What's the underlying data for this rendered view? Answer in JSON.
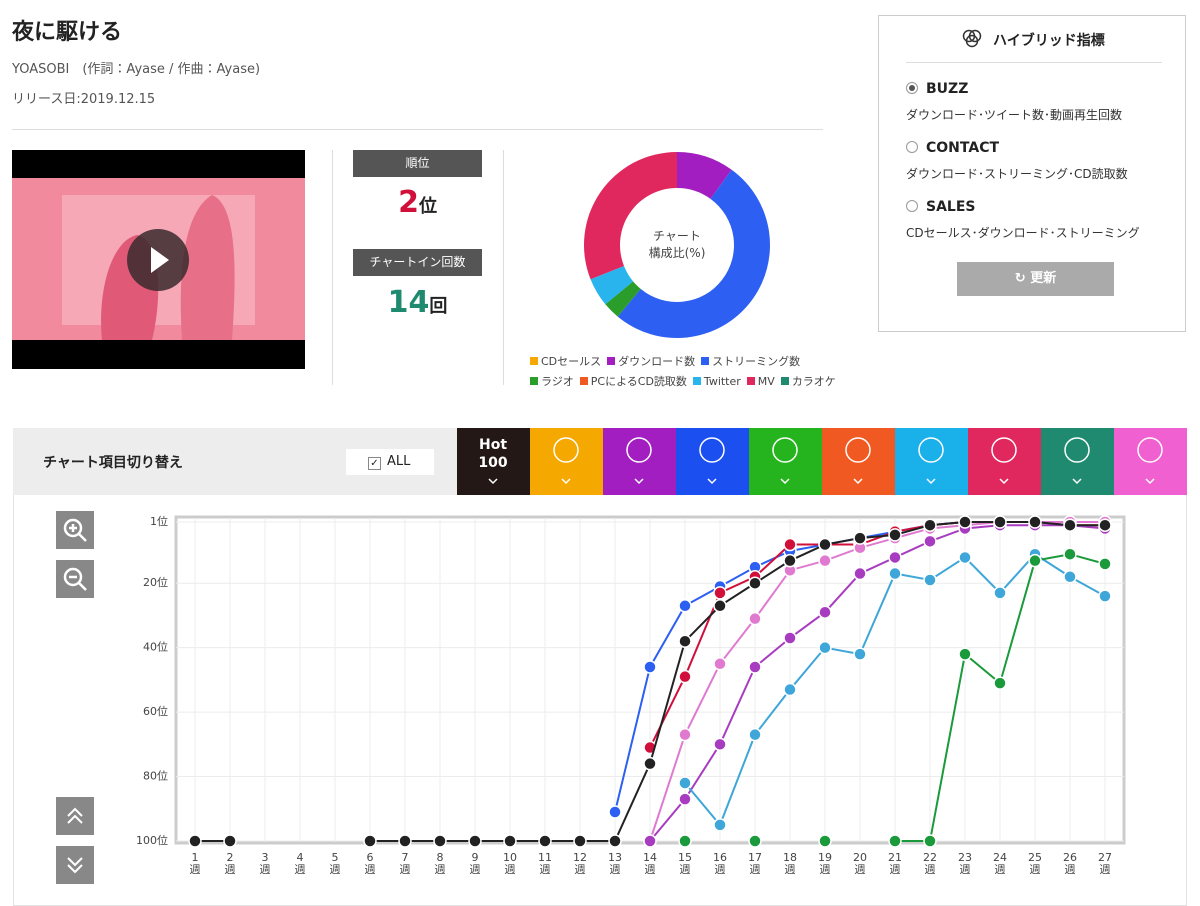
{
  "header": {
    "title": "夜に駆ける",
    "artist": "YOASOBI　(作詞：Ayase / 作曲：Ayase)",
    "release": "リリース日:2019.12.15"
  },
  "rank": {
    "rank_label": "順位",
    "rank": 2,
    "rank_unit": "位",
    "count_label": "チャートイン回数",
    "count": 14,
    "count_unit": "回"
  },
  "hybrid": {
    "title": "ハイブリッド指標",
    "options": [
      {
        "label": "BUZZ",
        "desc": "ダウンロード･ツイート数･動画再生回数"
      },
      {
        "label": "CONTACT",
        "desc": "ダウンロード･ストリーミング･CD読取数"
      },
      {
        "label": "SALES",
        "desc": "CDセールス･ダウンロード･ストリーミング"
      }
    ],
    "button": "更新"
  },
  "toolbar": {
    "label": "チャート項目切り替え",
    "all": "ALL",
    "hot": "Hot 100"
  },
  "chart_data": [
    {
      "type": "pie",
      "center_text": [
        "チャート",
        "構成比(%)"
      ],
      "categories": [
        "CDセールス",
        "ダウンロード数",
        "ストリーミング数",
        "ラジオ",
        "PCによるCD読取数",
        "Twitter",
        "MV",
        "カラオケ"
      ],
      "values": [
        0,
        10,
        51,
        3,
        0,
        5,
        31,
        0
      ],
      "colors": [
        "#f5a800",
        "#a21ec0",
        "#2c5ff2",
        "#2a9d2a",
        "#f05a22",
        "#2ab4ee",
        "#e0285e",
        "#1f8a70"
      ]
    },
    {
      "type": "line",
      "categories": [
        "1週",
        "2週",
        "3週",
        "4週",
        "5週",
        "6週",
        "7週",
        "8週",
        "9週",
        "10週",
        "11週",
        "12週",
        "13週",
        "14週",
        "15週",
        "16週",
        "17週",
        "18週",
        "19週",
        "20週",
        "21週",
        "22週",
        "23週",
        "24週",
        "25週",
        "26週",
        "27週"
      ],
      "series": [
        {
          "color": "#2c5ff2",
          "values": [
            null,
            null,
            null,
            null,
            null,
            null,
            null,
            null,
            null,
            null,
            null,
            null,
            91,
            46,
            27,
            21,
            15,
            10,
            8,
            6,
            4,
            2,
            1,
            1,
            1,
            1,
            1
          ]
        },
        {
          "color": "#d0103a",
          "values": [
            null,
            null,
            null,
            null,
            null,
            null,
            null,
            null,
            null,
            null,
            null,
            null,
            null,
            71,
            49,
            23,
            18,
            8,
            8,
            8,
            4,
            2,
            1,
            1,
            1,
            2,
            2
          ]
        },
        {
          "color": "#e07ad0",
          "values": [
            null,
            null,
            null,
            null,
            null,
            null,
            null,
            null,
            null,
            null,
            null,
            null,
            null,
            100,
            67,
            45,
            31,
            16,
            13,
            9,
            6,
            3,
            2,
            1,
            1,
            1,
            1
          ]
        },
        {
          "color": "#a83cc0",
          "values": [
            null,
            null,
            null,
            null,
            null,
            null,
            null,
            null,
            null,
            null,
            null,
            null,
            null,
            100,
            87,
            70,
            46,
            37,
            29,
            17,
            12,
            7,
            3,
            2,
            2,
            2,
            3
          ]
        },
        {
          "color": "#3ea6d8",
          "values": [
            null,
            null,
            null,
            null,
            null,
            null,
            null,
            null,
            null,
            null,
            null,
            null,
            null,
            null,
            82,
            95,
            67,
            53,
            40,
            42,
            17,
            19,
            12,
            23,
            11,
            18,
            24
          ]
        },
        {
          "color": "#1a9a3a",
          "values": [
            null,
            null,
            null,
            null,
            null,
            null,
            null,
            null,
            null,
            null,
            null,
            null,
            null,
            null,
            100,
            null,
            100,
            null,
            100,
            null,
            100,
            100,
            42,
            51,
            13,
            11,
            14
          ]
        },
        {
          "color": "#222222",
          "values": [
            100,
            100,
            null,
            null,
            null,
            100,
            100,
            100,
            100,
            100,
            100,
            100,
            100,
            76,
            38,
            27,
            20,
            13,
            8,
            6,
            5,
            2,
            1,
            1,
            1,
            2,
            2
          ]
        }
      ],
      "ylim": [
        100,
        1
      ],
      "yticks": [
        {
          "value": 1,
          "label": "1位"
        },
        {
          "value": 20,
          "label": "20位"
        },
        {
          "value": 40,
          "label": "40位"
        },
        {
          "value": 60,
          "label": "60位"
        },
        {
          "value": 80,
          "label": "80位"
        },
        {
          "value": 100,
          "label": "100位"
        }
      ],
      "grid": true
    }
  ]
}
